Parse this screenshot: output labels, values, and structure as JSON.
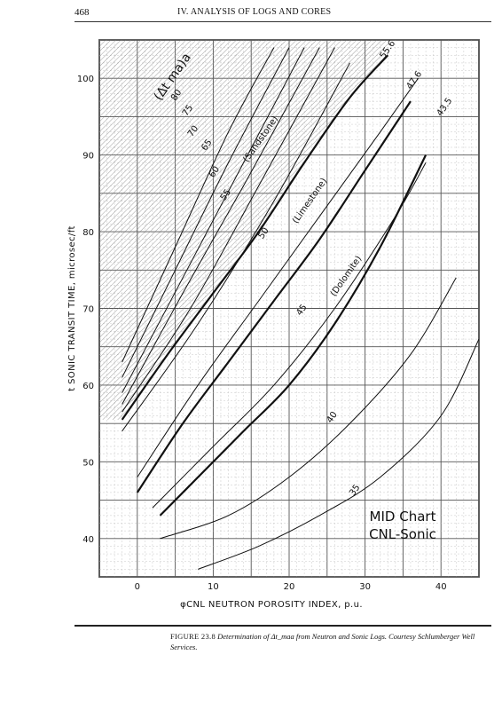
{
  "header": {
    "page_number": "468",
    "running_head": "IV. ANALYSIS OF LOGS AND CORES"
  },
  "caption": {
    "figure_label": "FIGURE 23.8",
    "text": "Determination of Δt_maa from Neutron and Sonic Logs. Courtesy Schlumberger Well Services."
  },
  "chart_title_lines": [
    "MID Chart",
    "CNL-Sonic"
  ],
  "chart_data": {
    "type": "line",
    "xlabel": "φCNL NEUTRON POROSITY INDEX, p.u.",
    "ylabel": "t SONIC TRANSIT TIME, microsec/ft",
    "xlim": [
      -5,
      45
    ],
    "ylim": [
      35,
      105
    ],
    "xticks": [
      0,
      10,
      20,
      30,
      40
    ],
    "yticks": [
      40,
      50,
      60,
      70,
      80,
      90,
      100
    ],
    "grid": true,
    "parameter_label": "(Δt ma)a",
    "series": [
      {
        "name": "80",
        "x": [
          -2,
          5,
          12,
          18
        ],
        "y": [
          63,
          78,
          93,
          104
        ]
      },
      {
        "name": "75",
        "x": [
          -2,
          5,
          12,
          20
        ],
        "y": [
          61,
          75,
          89,
          104
        ]
      },
      {
        "name": "70",
        "x": [
          -2,
          6,
          14,
          22
        ],
        "y": [
          59,
          74,
          89,
          104
        ]
      },
      {
        "name": "65",
        "x": [
          -2,
          6,
          14,
          24
        ],
        "y": [
          57.5,
          72,
          86,
          104
        ]
      },
      {
        "name": "60",
        "x": [
          -2,
          7,
          16,
          26
        ],
        "y": [
          56.5,
          70,
          86,
          104
        ]
      },
      {
        "name": "55.6",
        "x": [
          -2,
          4,
          10,
          16,
          22,
          28,
          33
        ],
        "y": [
          55.5,
          64,
          72,
          80,
          89,
          97.5,
          103
        ]
      },
      {
        "name": "55",
        "x": [
          -2,
          8,
          18,
          28
        ],
        "y": [
          54,
          68,
          84,
          102
        ]
      },
      {
        "name": "50",
        "x": [
          0,
          8,
          16,
          24,
          32,
          37
        ],
        "y": [
          48,
          60,
          71,
          82,
          93,
          100
        ]
      },
      {
        "name": "47.6",
        "x": [
          0,
          6,
          12,
          18,
          24,
          30,
          36
        ],
        "y": [
          46,
          55,
          63,
          71,
          79,
          88,
          97
        ]
      },
      {
        "name": "45",
        "x": [
          2,
          10,
          18,
          26,
          34,
          38
        ],
        "y": [
          44,
          52,
          60,
          70,
          82,
          89
        ]
      },
      {
        "name": "43.5",
        "x": [
          3,
          8,
          14,
          20,
          26,
          32,
          38
        ],
        "y": [
          43,
          48,
          54,
          60,
          68,
          78,
          90
        ]
      },
      {
        "name": "40",
        "x": [
          3,
          12,
          20,
          28,
          36,
          42
        ],
        "y": [
          40,
          43,
          48,
          55,
          64,
          74
        ]
      },
      {
        "name": "35",
        "x": [
          8,
          16,
          24,
          32,
          40,
          45
        ],
        "y": [
          36,
          39,
          43,
          48,
          56,
          66
        ]
      }
    ],
    "curve_labels": [
      {
        "text": "80",
        "x": 5.0,
        "y": 97
      },
      {
        "text": "75",
        "x": 6.5,
        "y": 95
      },
      {
        "text": "70",
        "x": 7.2,
        "y": 92.3
      },
      {
        "text": "65",
        "x": 9.0,
        "y": 90.5
      },
      {
        "text": "60",
        "x": 10.0,
        "y": 87
      },
      {
        "text": "55",
        "x": 11.5,
        "y": 84
      },
      {
        "text": "50",
        "x": 16.5,
        "y": 79
      },
      {
        "text": "45",
        "x": 21.5,
        "y": 69
      },
      {
        "text": "40",
        "x": 25.5,
        "y": 55
      },
      {
        "text": "35",
        "x": 28.5,
        "y": 45.5
      },
      {
        "text": "55.6",
        "x": 32.5,
        "y": 102.5
      },
      {
        "text": "47.6",
        "x": 36.0,
        "y": 98.5
      },
      {
        "text": "43.5",
        "x": 40.0,
        "y": 95
      },
      {
        "text": "(Sandstone)",
        "x": 14.5,
        "y": 89
      },
      {
        "text": "(Limestone)",
        "x": 21.0,
        "y": 81
      },
      {
        "text": "(Dolomite)",
        "x": 26.0,
        "y": 71.5
      }
    ],
    "annotations": [
      "(Sandstone)",
      "(Limestone)",
      "(Dolomite)"
    ]
  }
}
